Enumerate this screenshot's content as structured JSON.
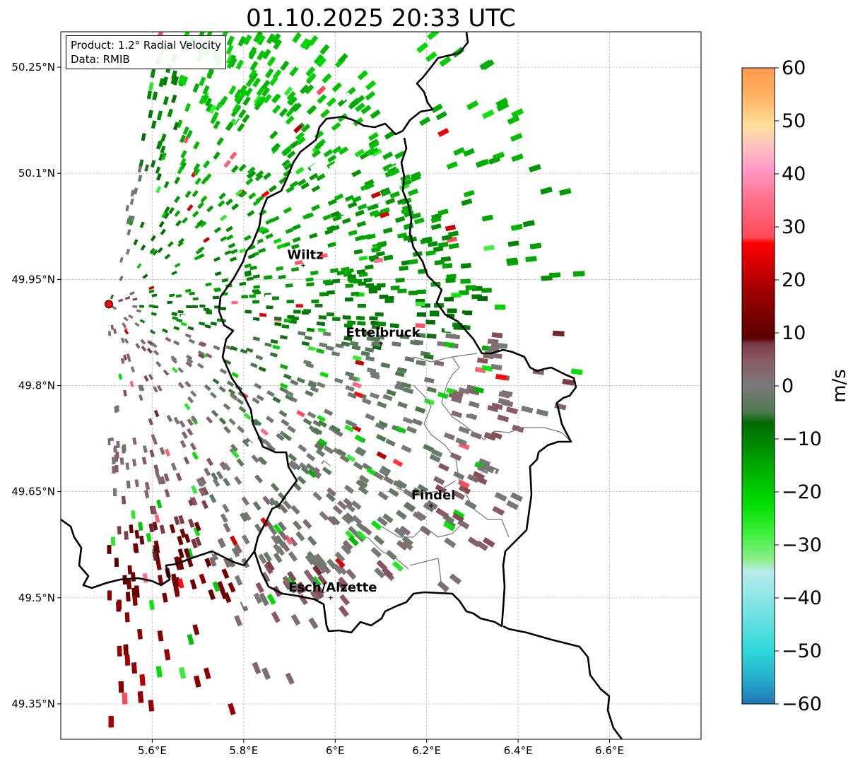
{
  "title": "01.10.2025 20:33 UTC",
  "info": {
    "product": "Product: 1.2° Radial Velocity",
    "data": "Data: RMIB"
  },
  "map": {
    "lon_range": [
      5.4,
      6.8
    ],
    "lat_range": [
      49.3,
      50.3
    ],
    "lon_ticks": [
      {
        "value": 5.6,
        "label": "5.6°E"
      },
      {
        "value": 5.8,
        "label": "5.8°E"
      },
      {
        "value": 6.0,
        "label": "6°E"
      },
      {
        "value": 6.2,
        "label": "6.2°E"
      },
      {
        "value": 6.4,
        "label": "6.4°E"
      },
      {
        "value": 6.6,
        "label": "6.6°E"
      }
    ],
    "lat_ticks": [
      {
        "value": 49.35,
        "label": "49.35°N"
      },
      {
        "value": 49.5,
        "label": "49.5°N"
      },
      {
        "value": 49.65,
        "label": "49.65°N"
      },
      {
        "value": 49.8,
        "label": "49.8°N"
      },
      {
        "value": 49.95,
        "label": "49.95°N"
      },
      {
        "value": 50.1,
        "label": "50.1°N"
      },
      {
        "value": 50.25,
        "label": "50.25°N"
      }
    ],
    "radar": {
      "lon": 5.505,
      "lat": 49.915
    },
    "cities": [
      {
        "name": "Wiltz",
        "lon": 5.93,
        "lat": 49.97
      },
      {
        "name": "Ettelbruck",
        "lon": 6.1,
        "lat": 49.86
      },
      {
        "name": "Findel",
        "lon": 6.21,
        "lat": 49.63
      },
      {
        "name": "Esch/Alzette",
        "lon": 5.99,
        "lat": 49.5
      }
    ]
  },
  "colorbar": {
    "label": "m/s",
    "min": -60,
    "max": 60,
    "ticks": [
      {
        "value": 60,
        "label": "60"
      },
      {
        "value": 50,
        "label": "50"
      },
      {
        "value": 40,
        "label": "40"
      },
      {
        "value": 30,
        "label": "30"
      },
      {
        "value": 20,
        "label": "20"
      },
      {
        "value": 10,
        "label": "10"
      },
      {
        "value": 0,
        "label": "0"
      },
      {
        "value": -10,
        "label": "−10"
      },
      {
        "value": -20,
        "label": "−20"
      },
      {
        "value": -30,
        "label": "−30"
      },
      {
        "value": -40,
        "label": "−40"
      },
      {
        "value": -50,
        "label": "−50"
      },
      {
        "value": -60,
        "label": "−60"
      }
    ],
    "stops": [
      {
        "v": -60,
        "c": "#1f77b4"
      },
      {
        "v": -55,
        "c": "#25b0cc"
      },
      {
        "v": -50,
        "c": "#2ed8da"
      },
      {
        "v": -45,
        "c": "#5de0e0"
      },
      {
        "v": -40,
        "c": "#8ce6e6"
      },
      {
        "v": -35,
        "c": "#b8ecec"
      },
      {
        "v": -33,
        "c": "#90ee90"
      },
      {
        "v": -28,
        "c": "#3ef03e"
      },
      {
        "v": -22,
        "c": "#00dd00"
      },
      {
        "v": -15,
        "c": "#00a800"
      },
      {
        "v": -7,
        "c": "#006a00"
      },
      {
        "v": -5,
        "c": "#4e7a4e"
      },
      {
        "v": 0,
        "c": "#7a7a7a"
      },
      {
        "v": 5,
        "c": "#8a5a64"
      },
      {
        "v": 8,
        "c": "#7a3a44"
      },
      {
        "v": 9,
        "c": "#5a0000"
      },
      {
        "v": 18,
        "c": "#a00000"
      },
      {
        "v": 27,
        "c": "#ff0000"
      },
      {
        "v": 28,
        "c": "#ff4a5a"
      },
      {
        "v": 35,
        "c": "#ff6f8a"
      },
      {
        "v": 41,
        "c": "#ff9ac8"
      },
      {
        "v": 45,
        "c": "#ffc0c0"
      },
      {
        "v": 49,
        "c": "#ffe09a"
      },
      {
        "v": 55,
        "c": "#ffb060"
      },
      {
        "v": 60,
        "c": "#ff9a50"
      }
    ]
  }
}
